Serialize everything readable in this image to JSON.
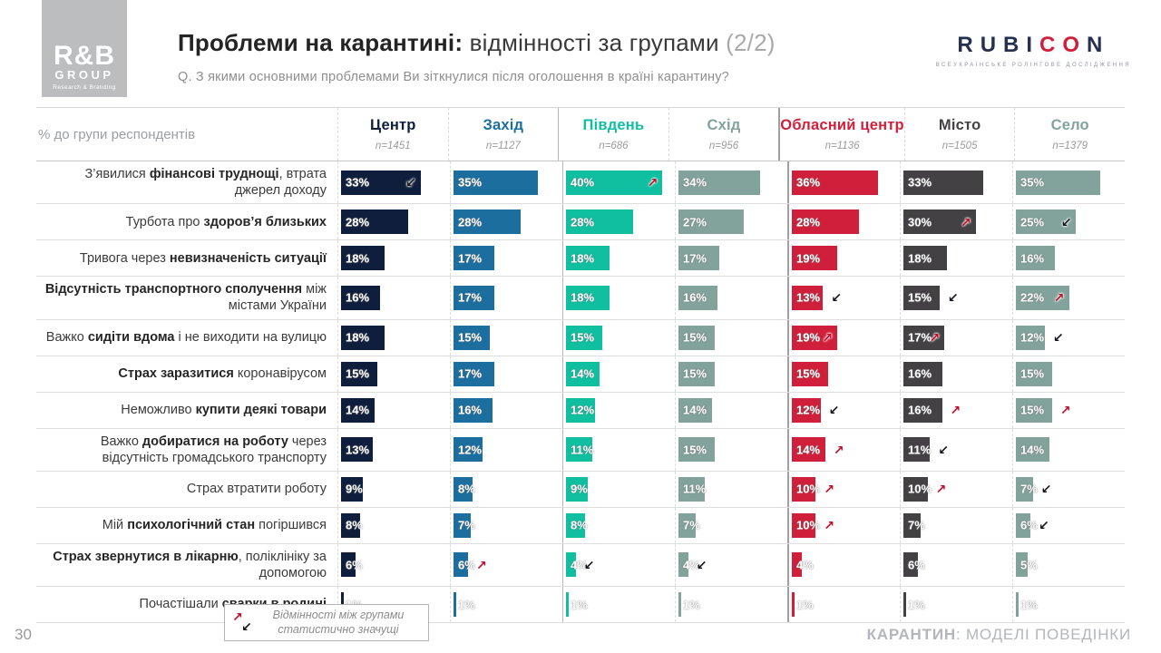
{
  "logo_rb": {
    "line1": "R&B",
    "line2": "GROUP",
    "line3": "Research & Branding"
  },
  "header": {
    "title_bold": "Проблеми на карантині:",
    "title_regular": " відмінності за групами ",
    "title_suffix": "(2/2)",
    "question": "Q. З якими основними проблемами Ви зіткнулися після оголошення в країні карантину?"
  },
  "logo_rubicon": {
    "part1": "RUBI",
    "part2": "CO",
    "part3": "N",
    "subtitle": "ВСЕУКРАЇНСЬКЕ РОЛІНГОВЕ ДОСЛІДЖЕННЯ"
  },
  "legend": {
    "up_glyph": "↗",
    "down_glyph": "↙",
    "line1": "Відмінності між групами",
    "line2": "статистично значущі"
  },
  "footer": {
    "page": "30",
    "right_bold": "КАРАНТИН",
    "right_rest": ": МОДЕЛІ ПОВЕДІНКИ"
  },
  "chart_data": {
    "type": "table",
    "corner_label": "% до групи респондентів",
    "scale_max": 44,
    "unit": "%",
    "arrow_meaning": {
      "up": "significantly higher",
      "down": "significantly lower"
    },
    "columns": [
      {
        "label": "Центр",
        "n": "n=1451",
        "color": "#0e1e3c",
        "sep": "dashed"
      },
      {
        "label": "Захід",
        "n": "n=1127",
        "color": "#1c6e9f",
        "sep": "dashed"
      },
      {
        "label": "Південь",
        "n": "n=686",
        "color": "#0fbfa0",
        "sep": "solid"
      },
      {
        "label": "Схід",
        "n": "n=956",
        "color": "#82a39c",
        "sep": "dashed"
      },
      {
        "label": "Обласний центр",
        "n": "n=1136",
        "color": "#d01f3a",
        "sep": "strong"
      },
      {
        "label": "Місто",
        "n": "n=1505",
        "color": "#434144",
        "sep": "dashed"
      },
      {
        "label": "Село",
        "n": "n=1379",
        "color": "#82a39c",
        "sep": "dashed"
      }
    ],
    "rows": [
      {
        "label": [
          [
            "З’явилися ",
            0
          ],
          [
            "фінансові труднощі",
            1
          ],
          [
            ", втрата джерел доходу",
            0
          ]
        ],
        "cells": [
          {
            "v": 33,
            "a": "down",
            "p": "in"
          },
          {
            "v": 35
          },
          {
            "v": 40,
            "a": "up",
            "p": "in"
          },
          {
            "v": 34
          },
          {
            "v": 36
          },
          {
            "v": 33
          },
          {
            "v": 35
          }
        ]
      },
      {
        "label": [
          [
            "Турбота про ",
            0
          ],
          [
            "здоров’я близьких",
            1
          ]
        ],
        "cells": [
          {
            "v": 28
          },
          {
            "v": 28
          },
          {
            "v": 28
          },
          {
            "v": 27
          },
          {
            "v": 28
          },
          {
            "v": 30,
            "a": "up",
            "p": "in"
          },
          {
            "v": 25,
            "a": "down",
            "p": "in"
          }
        ]
      },
      {
        "label": [
          [
            "Тривога через ",
            0
          ],
          [
            "невизначеність ситуації",
            1
          ]
        ],
        "cells": [
          {
            "v": 18
          },
          {
            "v": 17
          },
          {
            "v": 18
          },
          {
            "v": 17
          },
          {
            "v": 19
          },
          {
            "v": 18
          },
          {
            "v": 16
          }
        ]
      },
      {
        "label": [
          [
            "Відсутність транспортного сполучення",
            1
          ],
          [
            " між містами України",
            0
          ]
        ],
        "cells": [
          {
            "v": 16
          },
          {
            "v": 17
          },
          {
            "v": 18
          },
          {
            "v": 16
          },
          {
            "v": 13,
            "a": "down",
            "p": "out"
          },
          {
            "v": 15,
            "a": "down",
            "p": "out"
          },
          {
            "v": 22,
            "a": "up",
            "p": "in"
          }
        ]
      },
      {
        "label": [
          [
            "Важко ",
            0
          ],
          [
            "сидіти вдома",
            1
          ],
          [
            " і не виходити на вулицю",
            0
          ]
        ],
        "cells": [
          {
            "v": 18
          },
          {
            "v": 15
          },
          {
            "v": 15
          },
          {
            "v": 15
          },
          {
            "v": 19,
            "a": "up",
            "p": "in"
          },
          {
            "v": 17,
            "a": "up",
            "p": "in"
          },
          {
            "v": 12,
            "a": "down",
            "p": "out"
          }
        ]
      },
      {
        "label": [
          [
            "Страх заразитися",
            1
          ],
          [
            " коронавірусом",
            0
          ]
        ],
        "cells": [
          {
            "v": 15
          },
          {
            "v": 17
          },
          {
            "v": 14
          },
          {
            "v": 15
          },
          {
            "v": 15
          },
          {
            "v": 16
          },
          {
            "v": 15
          }
        ]
      },
      {
        "label": [
          [
            "Неможливо ",
            0
          ],
          [
            "купити деякі товари",
            1
          ]
        ],
        "cells": [
          {
            "v": 14
          },
          {
            "v": 16
          },
          {
            "v": 12
          },
          {
            "v": 14
          },
          {
            "v": 12,
            "a": "down",
            "p": "out"
          },
          {
            "v": 16,
            "a": "up",
            "p": "out"
          },
          {
            "v": 15,
            "a": "up",
            "p": "out"
          }
        ]
      },
      {
        "label": [
          [
            "Важко ",
            0
          ],
          [
            "добиратися на роботу",
            1
          ],
          [
            " через відсутність громадського транспорту",
            0
          ]
        ],
        "cells": [
          {
            "v": 13
          },
          {
            "v": 12
          },
          {
            "v": 11
          },
          {
            "v": 15
          },
          {
            "v": 14,
            "a": "up",
            "p": "out"
          },
          {
            "v": 11,
            "a": "down",
            "p": "out"
          },
          {
            "v": 14
          }
        ]
      },
      {
        "label": [
          [
            "Страх втратити роботу",
            0
          ]
        ],
        "cells": [
          {
            "v": 9
          },
          {
            "v": 8
          },
          {
            "v": 9
          },
          {
            "v": 11
          },
          {
            "v": 10,
            "a": "up",
            "p": "out"
          },
          {
            "v": 10,
            "a": "up",
            "p": "out"
          },
          {
            "v": 7,
            "a": "down",
            "p": "out"
          }
        ]
      },
      {
        "label": [
          [
            "Мій ",
            0
          ],
          [
            "психологічний стан",
            1
          ],
          [
            " погіршився",
            0
          ]
        ],
        "cells": [
          {
            "v": 8
          },
          {
            "v": 7
          },
          {
            "v": 8
          },
          {
            "v": 7
          },
          {
            "v": 10,
            "a": "up",
            "p": "out"
          },
          {
            "v": 7
          },
          {
            "v": 6,
            "a": "down",
            "p": "out"
          }
        ]
      },
      {
        "label": [
          [
            "Страх звернутися в лікарню",
            1
          ],
          [
            ", поліклініку за допомогою",
            0
          ]
        ],
        "cells": [
          {
            "v": 6
          },
          {
            "v": 6,
            "a": "up",
            "p": "out"
          },
          {
            "v": 4,
            "a": "down",
            "p": "out"
          },
          {
            "v": 4,
            "a": "down",
            "p": "out"
          },
          {
            "v": 4
          },
          {
            "v": 6
          },
          {
            "v": 5
          }
        ]
      },
      {
        "label": [
          [
            "Почастішали ",
            0
          ],
          [
            "сварки в родині",
            1
          ]
        ],
        "cells": [
          {
            "v": 1
          },
          {
            "v": 1
          },
          {
            "v": 1
          },
          {
            "v": 1
          },
          {
            "v": 1
          },
          {
            "v": 1
          },
          {
            "v": 1
          }
        ]
      }
    ]
  }
}
